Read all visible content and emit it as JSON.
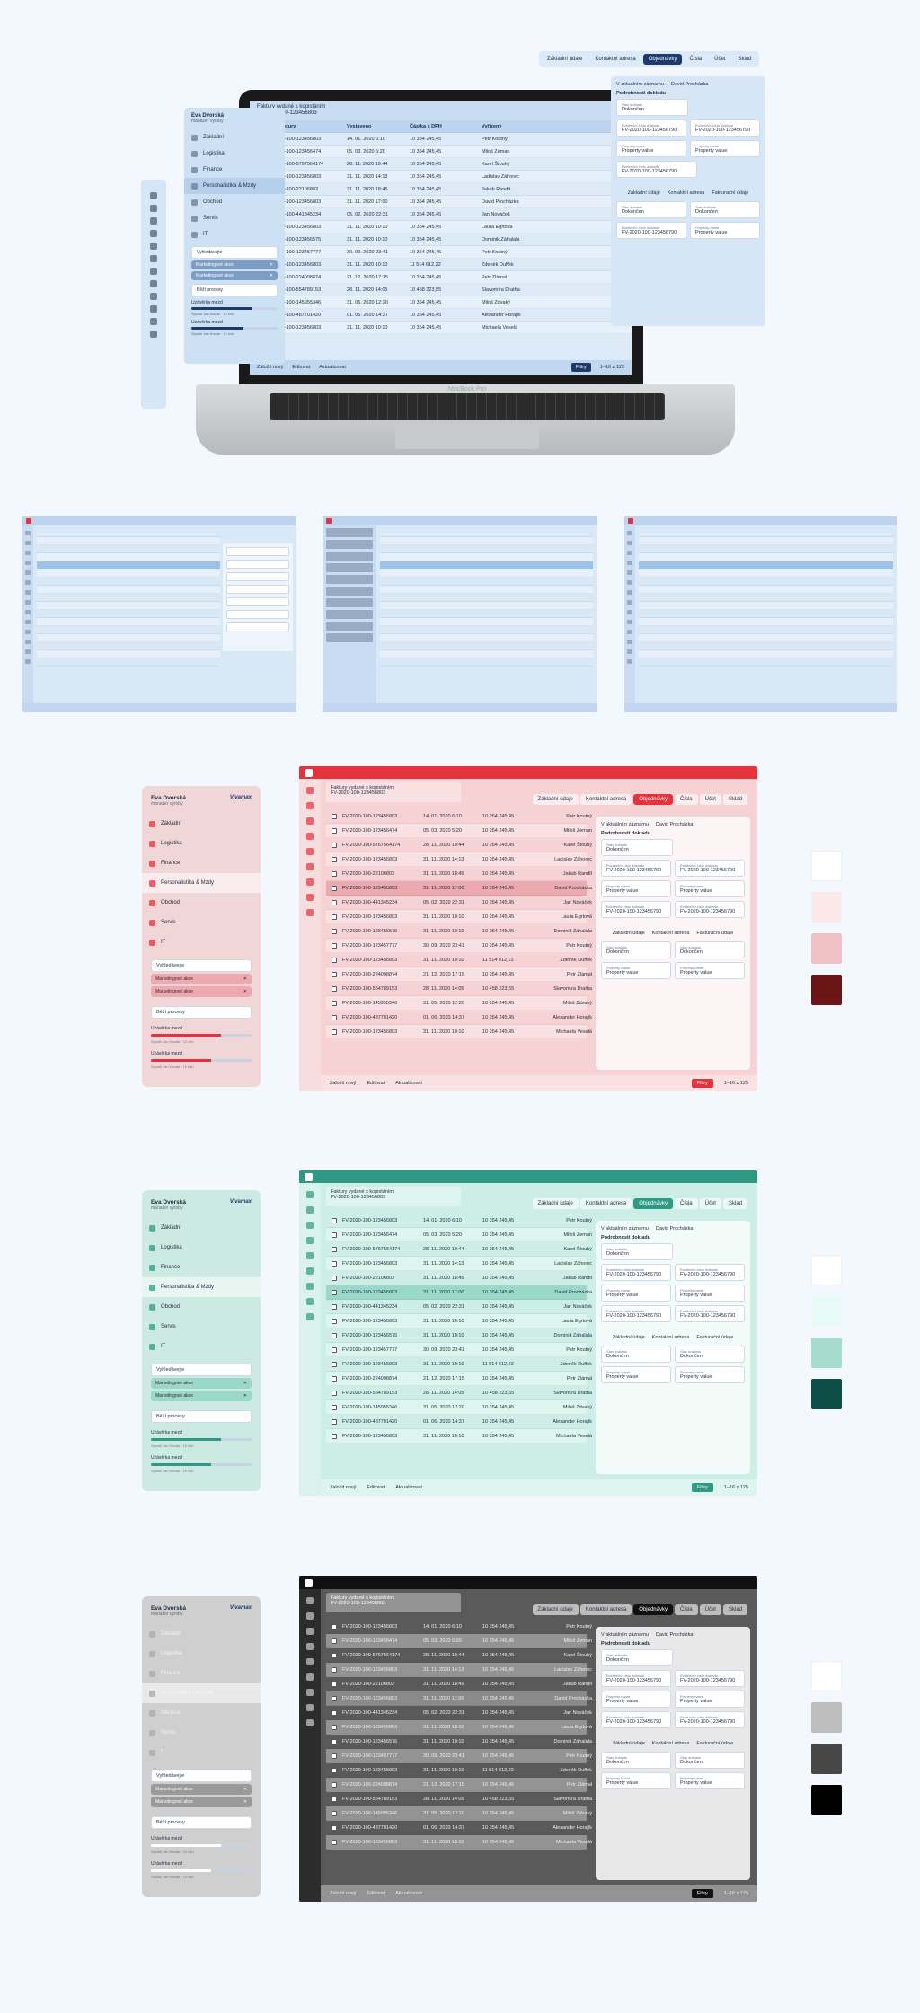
{
  "top_nav": [
    "Základní údaje",
    "Kontaktní adresa",
    "Objednávky",
    "Čísla",
    "Účet",
    "Sklad"
  ],
  "top_nav_active": "Objednávky",
  "user": {
    "name": "Eva Dvorská",
    "role": "manažer výroby",
    "brand": "Vivamax"
  },
  "menu": [
    "Základní",
    "Logistika",
    "Finance",
    "Personalistika & Mzdy",
    "Obchod",
    "Servis",
    "IT"
  ],
  "sidebar_filters": {
    "search_placeholder": "Vyhledávejte",
    "chips": [
      "Marketingové akce",
      "Marketingové akce"
    ],
    "search2_placeholder": "Běží procesy",
    "process_1": "Uzávěrka mezd",
    "process_1_note": "Spustil Jan Novák · 12 min",
    "process_1_progress": 0.7,
    "process_2": "Uzávěrka mezd",
    "process_2_note": "Spustil Jan Novák · 12 min",
    "process_2_progress": 0.6
  },
  "window_title": "Faktury vydané s kopistáním",
  "window_subtitle": "FV-2020-100-123456803",
  "columns": [
    "Číslo faktury",
    "Vystaveno",
    "Částka s DPH",
    "Vyřízený"
  ],
  "rows": [
    {
      "id": "FV-2020-100-123456803",
      "date": "14. 01. 2020 6:10",
      "amount": "10 354 245,45",
      "name": "Petr Koutný"
    },
    {
      "id": "FV-2020-100-123456474",
      "date": "05. 03. 2020 5:20",
      "amount": "10 354 245,45",
      "name": "Miloš Zeman"
    },
    {
      "id": "FV-2020-100-5767564174",
      "date": "28. 11. 2020 19:44",
      "amount": "10 354 245,45",
      "name": "Karel Štouhý"
    },
    {
      "id": "FV-2020-100-123456803",
      "date": "31. 11. 2020 14:13",
      "amount": "10 354 245,45",
      "name": "Ladislav Záhorec"
    },
    {
      "id": "FV-2020-100-22106803",
      "date": "31. 11. 2020 18:45",
      "amount": "10 354 245,45",
      "name": "Jakub Randlt"
    },
    {
      "id": "FV-2020-100-123456803",
      "date": "31. 11. 2020 17:00",
      "amount": "10 354 245,45",
      "name": "David Procházka"
    },
    {
      "id": "FV-2020-100-441345234",
      "date": "05. 02. 2020 22:31",
      "amount": "10 354 245,45",
      "name": "Jan Nováček"
    },
    {
      "id": "FV-2020-100-123456803",
      "date": "31. 11. 2020 10:10",
      "amount": "10 354 245,45",
      "name": "Laura Egrtová"
    },
    {
      "id": "FV-2020-100-123456575",
      "date": "31. 11. 2020 10:10",
      "amount": "10 354 245,45",
      "name": "Dominik Záhalala"
    },
    {
      "id": "FV-2020-100-123457777",
      "date": "30. 09. 2020 23:41",
      "amount": "10 354 245,45",
      "name": "Petr Koutný"
    },
    {
      "id": "FV-2020-100-123456803",
      "date": "31. 11. 2020 10:10",
      "amount": "11 514 612,22",
      "name": "Zdeněk Duffek"
    },
    {
      "id": "FV-2020-100-224098874",
      "date": "21. 12. 2020 17:15",
      "amount": "10 354 245,45",
      "name": "Petr Zlámal"
    },
    {
      "id": "FV-2020-100-554789153",
      "date": "28. 11. 2020 14:05",
      "amount": "10 458 223,55",
      "name": "Slavomíra Dratha"
    },
    {
      "id": "FV-2020-100-145955346",
      "date": "31. 05. 2020 12:20",
      "amount": "10 354 245,45",
      "name": "Miloš Zdvaký"
    },
    {
      "id": "FV-2020-100-487701420",
      "date": "01. 06. 2020 14:37",
      "amount": "10 354 245,45",
      "name": "Alexander Horajík"
    },
    {
      "id": "FV-2020-100-123456803",
      "date": "31. 11. 2020 10:10",
      "amount": "10 354 245,45",
      "name": "Michaela Veselá"
    }
  ],
  "detail": {
    "tab1": "V aktuálním záznamu",
    "tab2": "David Procházka",
    "section": "Podrobnosti dokladu",
    "field_label": "Stav dokladu",
    "field_value": "Dokončen",
    "doc_label": "Evidenční číslo dokladu",
    "doc_value": "FV-2020-100-123456790",
    "prop_label": "Property name",
    "prop_value": "Property value",
    "tabs": [
      "Základní údaje",
      "Kontaktní adresa",
      "Fakturační údaje"
    ]
  },
  "toolbar": {
    "add": "Založit nový",
    "edit": "Editovat",
    "refresh": "Aktualizovat",
    "filters": "Filtry",
    "pager": "1–16 z 125"
  },
  "device_label": "MacBook Pro",
  "themes": {
    "blue": {
      "accent": "#1e3a6b",
      "bg": "#dceaf8",
      "row_hl": "#9fc3e6"
    },
    "pink": {
      "accent": "#e5323c",
      "bg": "#f6d2d5",
      "row_hl": "#ecaab0",
      "swatches": [
        "#ffffff",
        "#fbe9ea",
        "#eec1c5",
        "#6b1516"
      ]
    },
    "green": {
      "accent": "#2f9a84",
      "bg": "#cdeee6",
      "row_hl": "#9ad9c8",
      "swatches": [
        "#ffffff",
        "#e8fbf6",
        "#a6dccd",
        "#0d4e47"
      ]
    },
    "dark": {
      "accent": "#111",
      "bg": "#5a5a5a",
      "row_hl": "#8a8a8a",
      "swatches": [
        "#ffffff",
        "#bdbdbd",
        "#474747",
        "#000000"
      ]
    }
  }
}
